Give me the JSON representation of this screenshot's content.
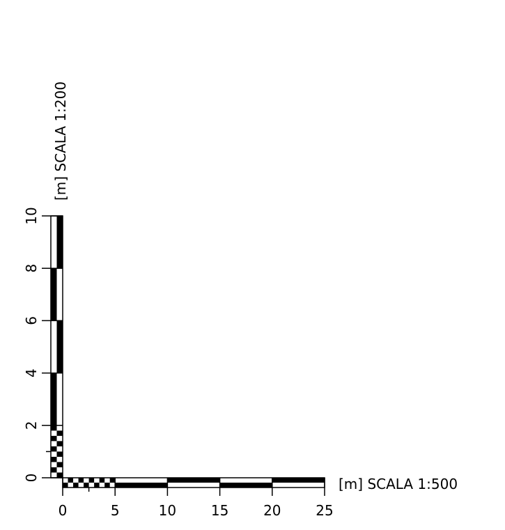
{
  "horizontal_scale": {
    "label": "[m]  SCALA  1:500",
    "ticks": [
      "0",
      "5",
      "10",
      "15",
      "20",
      "25"
    ]
  },
  "vertical_scale": {
    "label": "[m]  SCALA  1:200",
    "ticks": [
      "0",
      "2",
      "4",
      "6",
      "8",
      "10"
    ]
  }
}
